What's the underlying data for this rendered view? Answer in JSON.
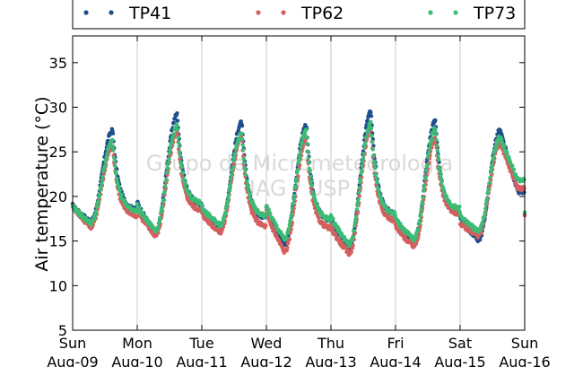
{
  "chart_data": {
    "type": "scatter",
    "ylabel": "Air temperature (°C)",
    "ylim": [
      5,
      38
    ],
    "yticks": [
      5,
      10,
      15,
      20,
      25,
      30,
      35
    ],
    "xlim": [
      "2015-08-09T00:00",
      "2015-08-16T00:00"
    ],
    "x_tick_labels": [
      {
        "day": "Sun",
        "date": "Aug-09"
      },
      {
        "day": "Mon",
        "date": "Aug-10"
      },
      {
        "day": "Tue",
        "date": "Aug-11"
      },
      {
        "day": "Wed",
        "date": "Aug-12"
      },
      {
        "day": "Thu",
        "date": "Aug-13"
      },
      {
        "day": "Fri",
        "date": "Aug-14"
      },
      {
        "day": "Sat",
        "date": "Aug-15"
      },
      {
        "day": "Sun",
        "date": "Aug-16"
      }
    ],
    "vertical_grid": true,
    "legend_position": "top",
    "watermark": [
      "Grupo de Micrometeorologia",
      "IAG / USP"
    ],
    "series": [
      {
        "name": "TP41",
        "color": "#1f4e8c",
        "daily_min": [
          17.2,
          16.0,
          16.3,
          14.6,
          14.3,
          14.8,
          15.1
        ],
        "daily_max": [
          27.4,
          29.2,
          28.3,
          28.0,
          29.5,
          28.5,
          27.4
        ],
        "end_value": 20.5
      },
      {
        "name": "TP62",
        "color": "#d45f5f",
        "daily_min": [
          16.6,
          15.6,
          16.0,
          13.8,
          13.6,
          14.4,
          15.6
        ],
        "daily_max": [
          25.6,
          27.2,
          26.7,
          26.4,
          27.5,
          26.5,
          25.9
        ],
        "end_value": 20.9
      },
      {
        "name": "TP73",
        "color": "#3dbb75",
        "daily_min": [
          17.0,
          16.2,
          16.8,
          15.2,
          14.6,
          15.2,
          16.1
        ],
        "daily_max": [
          26.2,
          27.9,
          27.0,
          27.3,
          28.2,
          27.6,
          26.6
        ],
        "end_value": 21.8
      }
    ]
  }
}
